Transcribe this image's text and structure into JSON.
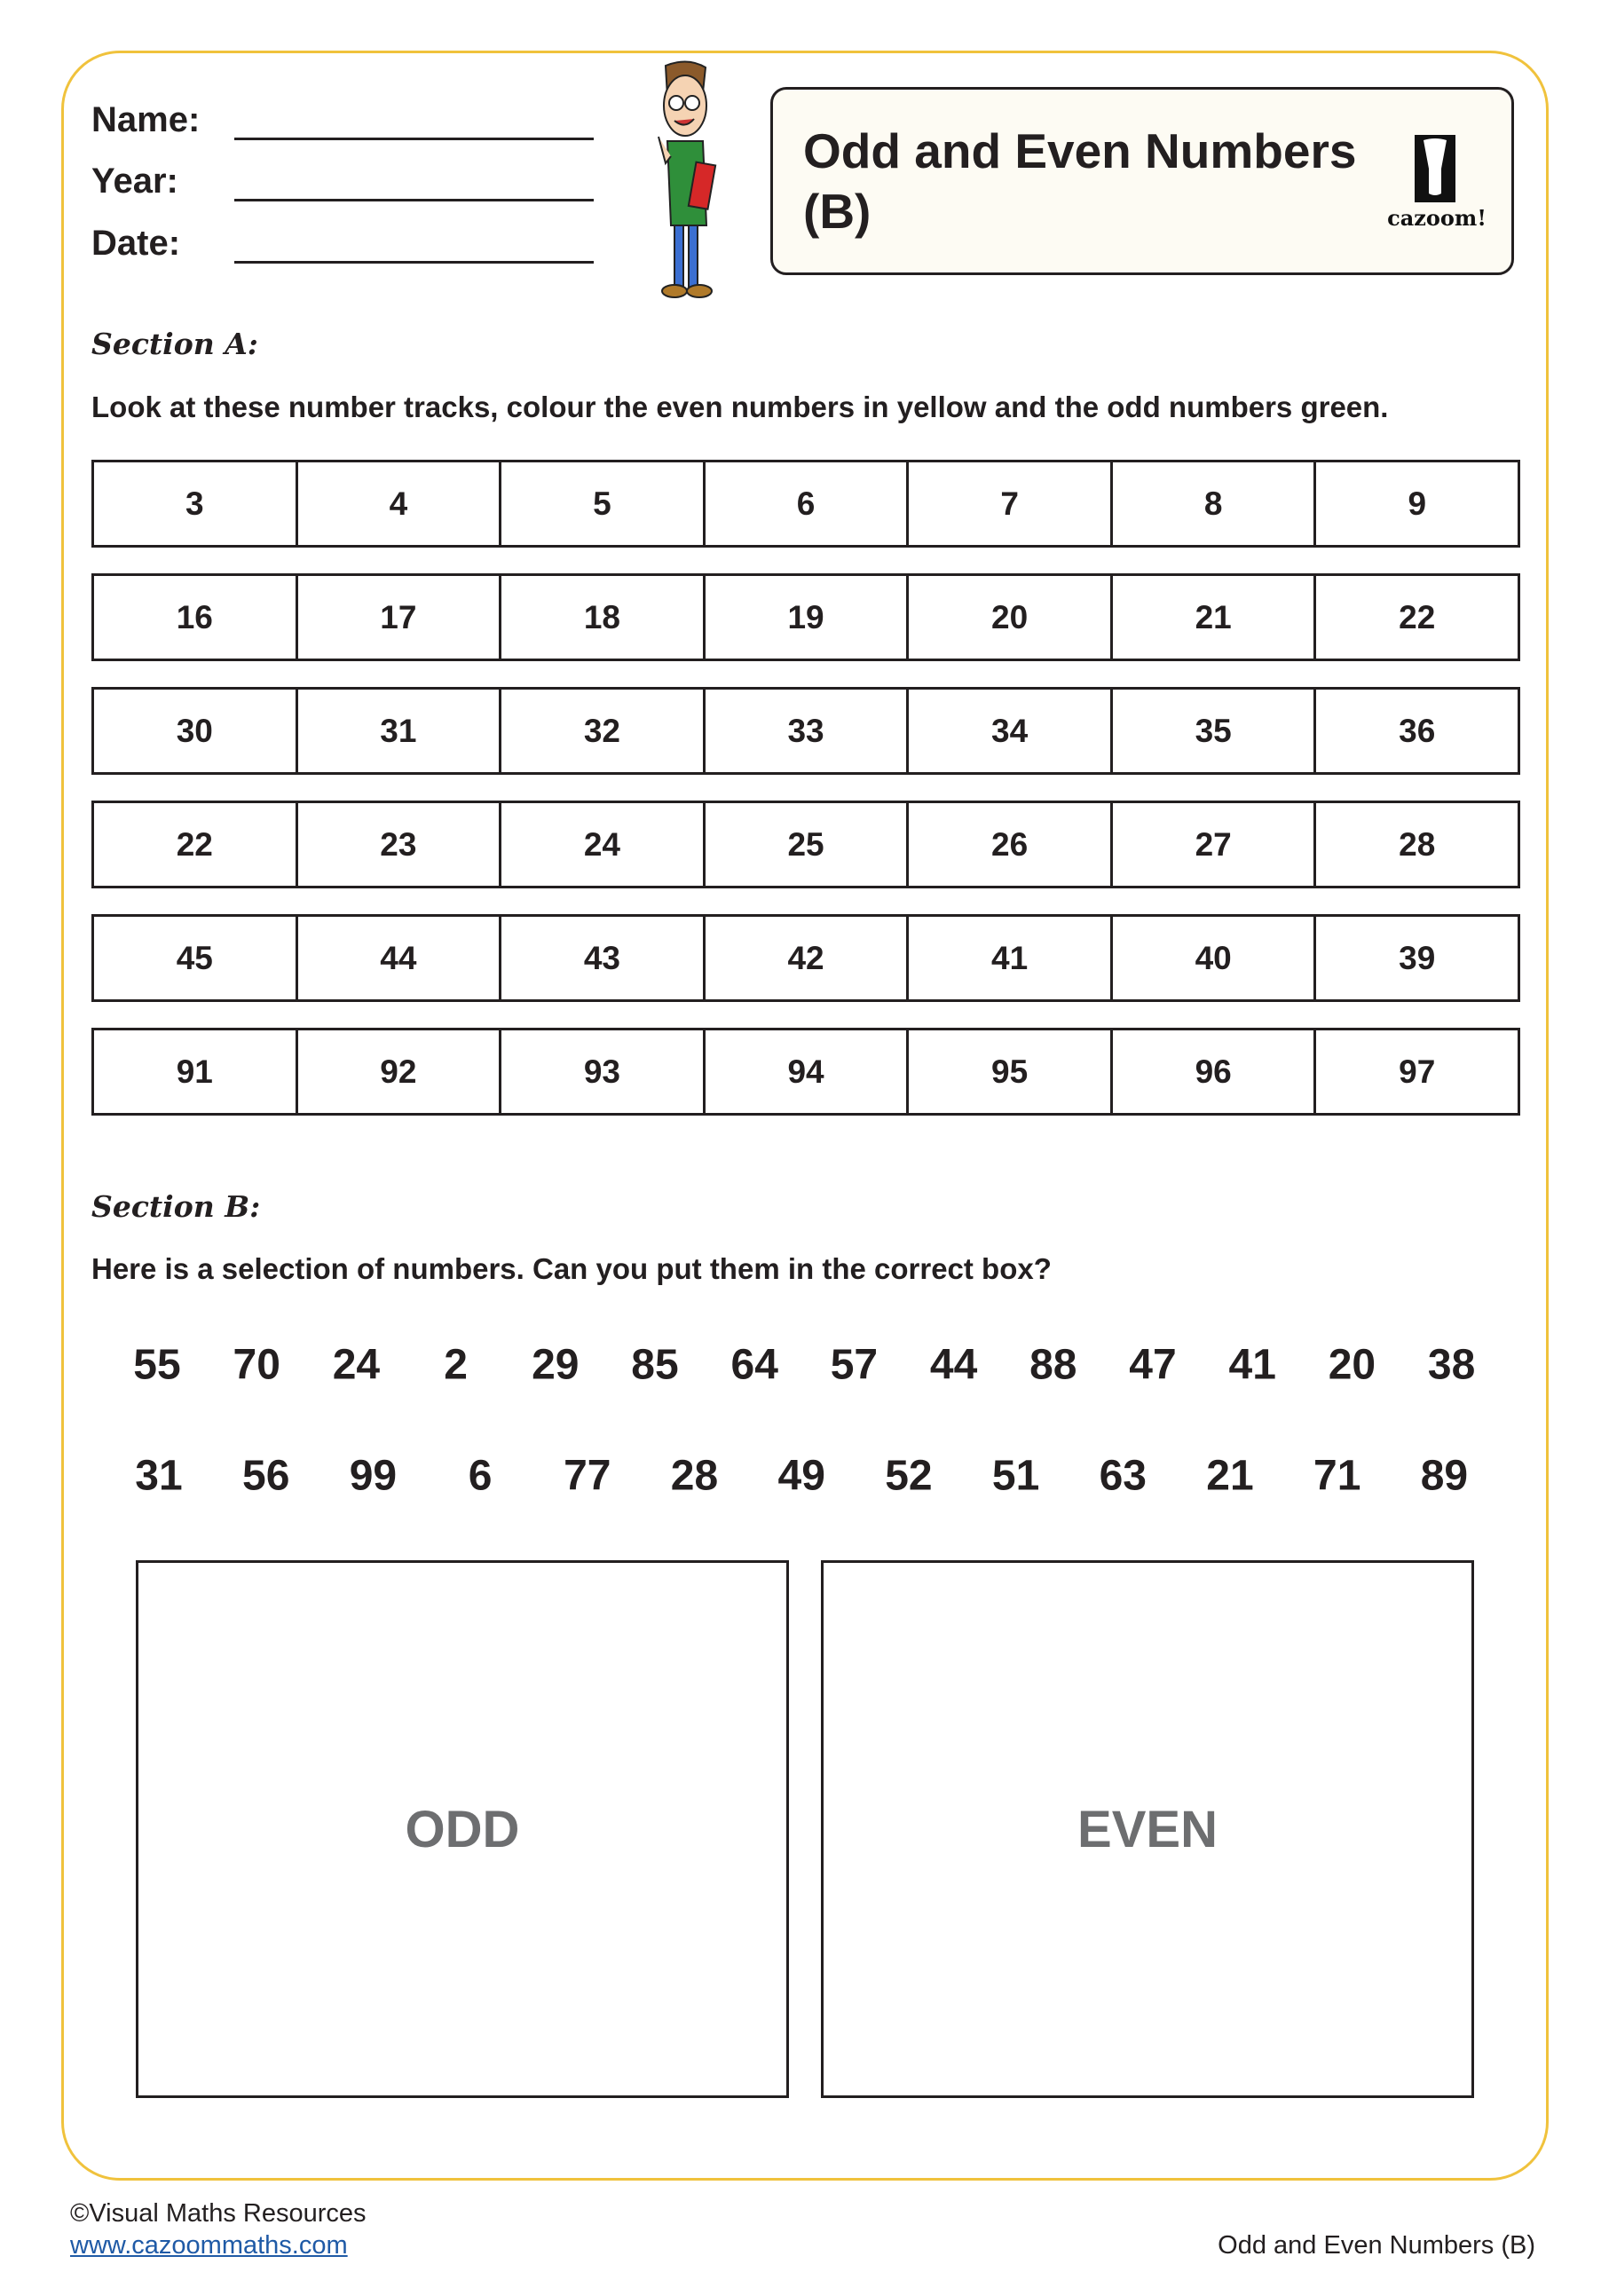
{
  "header": {
    "fields": [
      {
        "label": "Name:"
      },
      {
        "label": "Year:"
      },
      {
        "label": "Date:"
      }
    ],
    "title_line1": "Odd and Even Numbers",
    "title_line2": "(B)",
    "logo_text": "cazoom!"
  },
  "section_a": {
    "heading": "Section A:",
    "instruction": "Look at these number tracks, colour the even numbers in yellow and the odd numbers green.",
    "tracks": [
      [
        "3",
        "4",
        "5",
        "6",
        "7",
        "8",
        "9"
      ],
      [
        "16",
        "17",
        "18",
        "19",
        "20",
        "21",
        "22"
      ],
      [
        "30",
        "31",
        "32",
        "33",
        "34",
        "35",
        "36"
      ],
      [
        "22",
        "23",
        "24",
        "25",
        "26",
        "27",
        "28"
      ],
      [
        "45",
        "44",
        "43",
        "42",
        "41",
        "40",
        "39"
      ],
      [
        "91",
        "92",
        "93",
        "94",
        "95",
        "96",
        "97"
      ]
    ]
  },
  "section_b": {
    "heading": "Section B:",
    "instruction": "Here is a selection of numbers. Can you put them in the correct box?",
    "numbers_row1": [
      "55",
      "70",
      "24",
      "2",
      "29",
      "85",
      "64",
      "57",
      "44",
      "88",
      "47",
      "41",
      "20",
      "38"
    ],
    "numbers_row2": [
      "31",
      "56",
      "99",
      "6",
      "77",
      "28",
      "49",
      "52",
      "51",
      "63",
      "21",
      "71",
      "89"
    ],
    "odd_label": "ODD",
    "even_label": "EVEN"
  },
  "footer": {
    "copyright": "©Visual Maths Resources",
    "link": "www.cazoommaths.com",
    "doc_title": "Odd and Even Numbers (B)"
  },
  "colors": {
    "frame": "#f0c23c",
    "title_bg": "#fdfbf3",
    "box_label": "#6d6e70",
    "link": "#1f5aa6"
  }
}
